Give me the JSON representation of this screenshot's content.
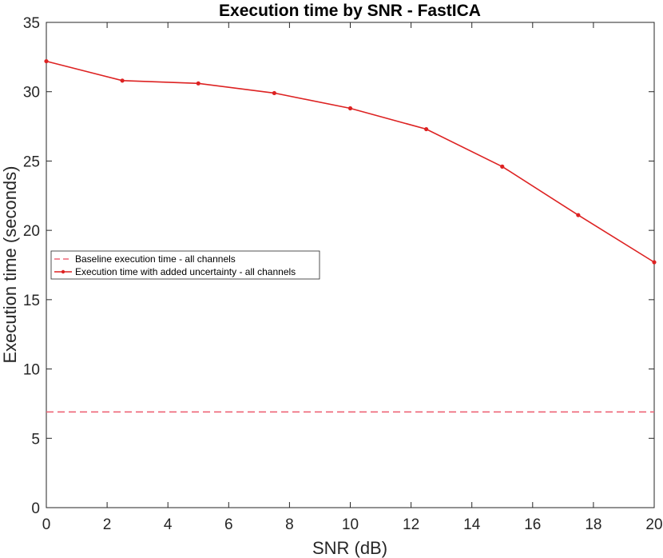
{
  "chart_data": {
    "type": "line",
    "title": "Execution time by SNR - FastICA",
    "xlabel": "SNR (dB)",
    "ylabel": "Execution time (seconds)",
    "xlim": [
      0,
      20
    ],
    "ylim": [
      0,
      35
    ],
    "xticks": [
      0,
      2,
      4,
      6,
      8,
      10,
      12,
      14,
      16,
      18,
      20
    ],
    "yticks": [
      0,
      5,
      10,
      15,
      20,
      25,
      30,
      35
    ],
    "grid": false,
    "legend_position": "middle-left",
    "series": [
      {
        "name": "Baseline execution time - all channels",
        "style": "dashed",
        "color": "#ee6677",
        "x": [
          0,
          20
        ],
        "y": [
          6.9,
          6.9
        ]
      },
      {
        "name": "Execution time with added uncertainty - all channels",
        "style": "solid-markers",
        "color": "#dd2222",
        "x": [
          0,
          2.5,
          5,
          7.5,
          10,
          12.5,
          15,
          17.5,
          20
        ],
        "y": [
          32.2,
          30.8,
          30.6,
          29.9,
          28.8,
          27.3,
          24.6,
          21.1,
          17.7
        ]
      }
    ]
  }
}
